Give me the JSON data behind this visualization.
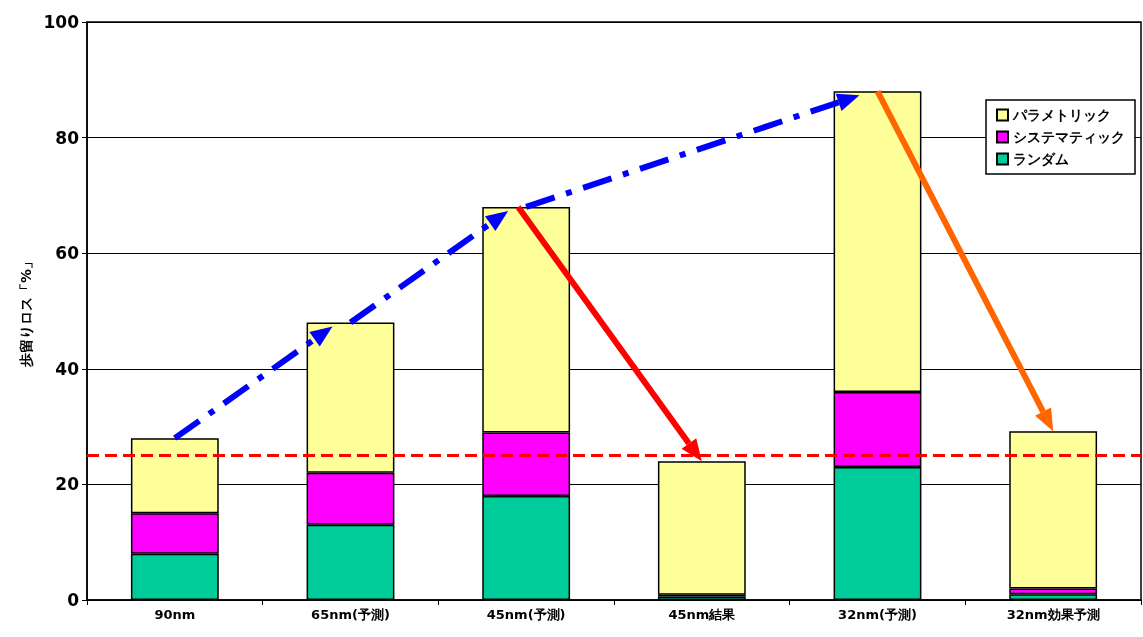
{
  "chart_data": {
    "type": "bar",
    "stacked": true,
    "categories": [
      "90nm",
      "65nm(予測)",
      "45nm(予測)",
      "45nm結果",
      "32nm(予測)",
      "32nm効果予測"
    ],
    "series": [
      {
        "name": "ランダム",
        "color": "#00cc99",
        "values": [
          8,
          13,
          18,
          0.6,
          23,
          1
        ]
      },
      {
        "name": "システマティック",
        "color": "#ff00ff",
        "values": [
          7,
          9,
          11,
          0.3,
          13,
          1
        ]
      },
      {
        "name": "パラメトリック",
        "color": "#ffff99",
        "values": [
          13,
          26,
          39,
          23.1,
          52,
          27.2
        ]
      }
    ],
    "ylabel": "歩留りロス「%」",
    "ylim": [
      0,
      100
    ],
    "yticks": [
      0,
      20,
      40,
      60,
      80,
      100
    ],
    "grid": "y",
    "legend": "top right",
    "ref_lines": [
      {
        "axis": "y",
        "value": 25,
        "color": "#ff0000",
        "line_style": "dashed"
      }
    ]
  }
}
